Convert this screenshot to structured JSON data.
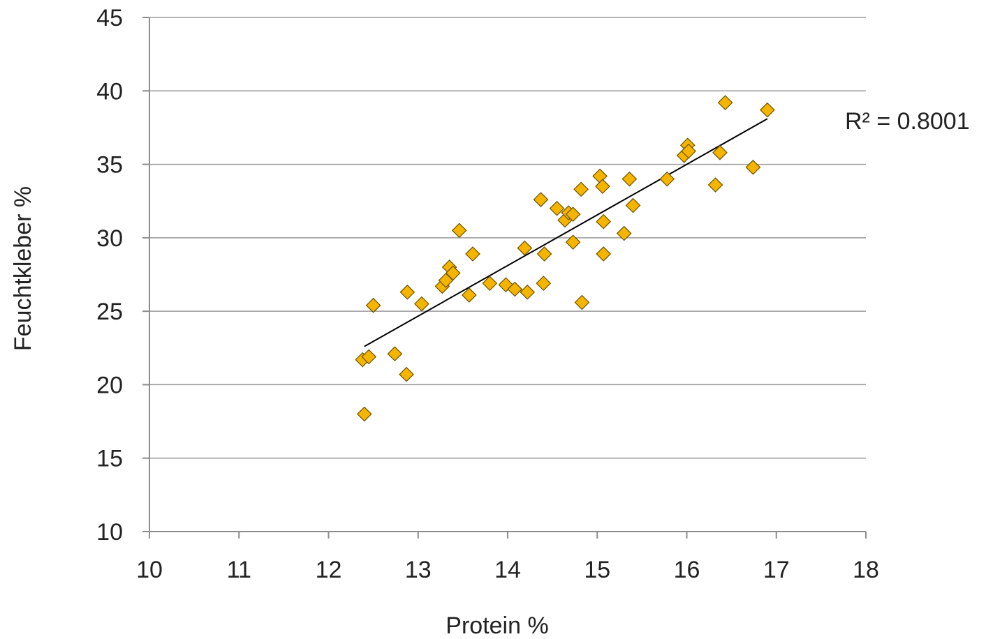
{
  "chart_data": {
    "type": "scatter",
    "xlabel": "Protein %",
    "ylabel": "Feuchtkleber %",
    "xlim": [
      10,
      18
    ],
    "ylim": [
      10,
      45
    ],
    "xticks": [
      "10",
      "11",
      "12",
      "13",
      "14",
      "15",
      "16",
      "17",
      "18"
    ],
    "yticks": [
      "10",
      "15",
      "20",
      "25",
      "30",
      "35",
      "40",
      "45"
    ],
    "grid": "horizontal",
    "marker_color": "#F4B400",
    "marker_edge": "#6b5200",
    "r_squared_label": "R² = 0.8001",
    "trendline": {
      "x": [
        12.4,
        16.9
      ],
      "y": [
        22.6,
        38.1
      ]
    },
    "points": [
      {
        "x": 12.38,
        "y": 21.7
      },
      {
        "x": 12.45,
        "y": 21.9
      },
      {
        "x": 12.4,
        "y": 18.0
      },
      {
        "x": 12.5,
        "y": 25.4
      },
      {
        "x": 12.74,
        "y": 22.1
      },
      {
        "x": 12.87,
        "y": 20.7
      },
      {
        "x": 12.88,
        "y": 26.3
      },
      {
        "x": 13.04,
        "y": 25.5
      },
      {
        "x": 13.27,
        "y": 26.7
      },
      {
        "x": 13.31,
        "y": 27.1
      },
      {
        "x": 13.35,
        "y": 28.0
      },
      {
        "x": 13.39,
        "y": 27.6
      },
      {
        "x": 13.46,
        "y": 30.5
      },
      {
        "x": 13.57,
        "y": 26.1
      },
      {
        "x": 13.61,
        "y": 28.9
      },
      {
        "x": 13.8,
        "y": 26.9
      },
      {
        "x": 13.98,
        "y": 26.8
      },
      {
        "x": 14.08,
        "y": 26.5
      },
      {
        "x": 14.19,
        "y": 29.3
      },
      {
        "x": 14.22,
        "y": 26.3
      },
      {
        "x": 14.37,
        "y": 32.6
      },
      {
        "x": 14.4,
        "y": 26.9
      },
      {
        "x": 14.41,
        "y": 28.9
      },
      {
        "x": 14.55,
        "y": 32.0
      },
      {
        "x": 14.64,
        "y": 31.2
      },
      {
        "x": 14.68,
        "y": 31.7
      },
      {
        "x": 14.73,
        "y": 31.6
      },
      {
        "x": 14.73,
        "y": 29.7
      },
      {
        "x": 14.82,
        "y": 33.3
      },
      {
        "x": 14.83,
        "y": 25.6
      },
      {
        "x": 15.03,
        "y": 34.2
      },
      {
        "x": 15.06,
        "y": 33.5
      },
      {
        "x": 15.07,
        "y": 31.1
      },
      {
        "x": 15.07,
        "y": 28.9
      },
      {
        "x": 15.3,
        "y": 30.3
      },
      {
        "x": 15.36,
        "y": 34.0
      },
      {
        "x": 15.4,
        "y": 32.2
      },
      {
        "x": 15.78,
        "y": 34.0
      },
      {
        "x": 15.97,
        "y": 35.6
      },
      {
        "x": 16.01,
        "y": 36.3
      },
      {
        "x": 16.02,
        "y": 35.9
      },
      {
        "x": 16.32,
        "y": 33.6
      },
      {
        "x": 16.37,
        "y": 35.8
      },
      {
        "x": 16.43,
        "y": 39.2
      },
      {
        "x": 16.74,
        "y": 34.8
      },
      {
        "x": 16.9,
        "y": 38.7
      }
    ]
  }
}
